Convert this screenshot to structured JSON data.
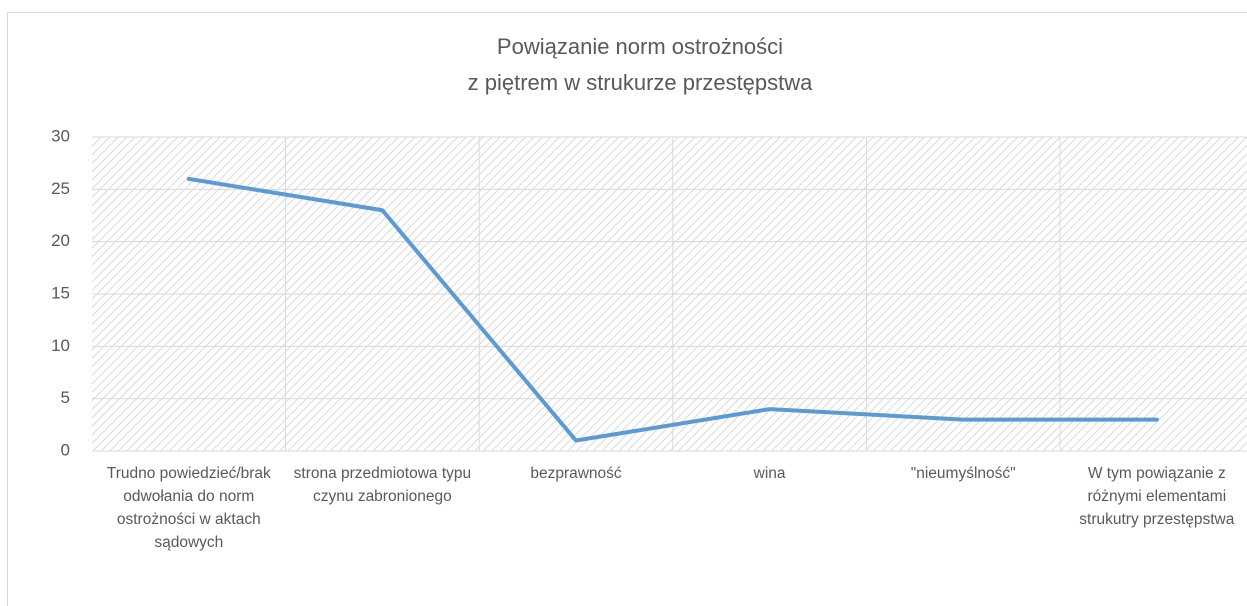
{
  "chart_data": {
    "type": "line",
    "title": [
      "Powiązanie norm ostrożności",
      "z piętrem w strukurze przestępstwa"
    ],
    "categories": [
      "Trudno powiedzieć/brak odwołania do norm ostrożności w aktach sądowych",
      "strona przedmiotowa typu czynu zabronionego",
      "bezprawność",
      "wina",
      "\"nieumyślność\"",
      "W tym powiązanie z różnymi elementami strukutry przestępstwa"
    ],
    "values": [
      26,
      23,
      1,
      4,
      3,
      3
    ],
    "color": "#5b9bd5",
    "ylim": [
      0,
      30
    ],
    "yticks": [
      0,
      5,
      10,
      15,
      20,
      25,
      30
    ],
    "grid": true
  }
}
